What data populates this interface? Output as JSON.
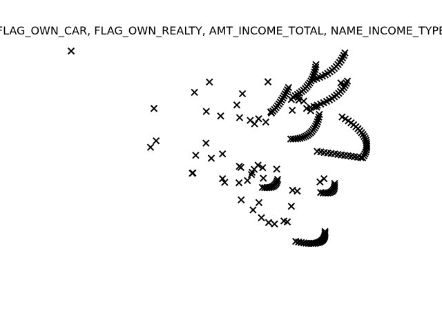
{
  "chart_data": {
    "type": "scatter",
    "title": "FLAG_OWN_CAR, FLAG_OWN_REALTY, AMT_INCOME_TOTAL, NAME_INCOME_TYPE",
    "xlabel": "",
    "ylabel": "",
    "axes_visible": false,
    "grid": false,
    "marker": "x",
    "marker_color": "#000000",
    "xlim": [
      0,
      100
    ],
    "ylim": [
      0,
      100
    ],
    "series": [
      {
        "points": [
          [
            0.0,
            100.0
          ],
          [
            39.6,
            82.0
          ],
          [
            44.4,
            86.5
          ],
          [
            63.2,
            86.6
          ],
          [
            55.0,
            81.4
          ],
          [
            26.6,
            75.0
          ],
          [
            43.4,
            73.7
          ],
          [
            53.2,
            76.5
          ],
          [
            54.1,
            71.0
          ],
          [
            48.0,
            71.7
          ],
          [
            60.2,
            70.5
          ],
          [
            57.5,
            69.8
          ],
          [
            58.9,
            68.3
          ],
          [
            62.5,
            69.1
          ],
          [
            71.0,
            74.2
          ],
          [
            76.9,
            74.0
          ],
          [
            64.1,
            73.5
          ],
          [
            73.1,
            78.6
          ],
          [
            70.7,
            78.9
          ],
          [
            72.9,
            79.8
          ],
          [
            74.7,
            78.2
          ],
          [
            78.8,
            75.6
          ],
          [
            86.6,
            86.1
          ],
          [
            25.5,
            58.1
          ],
          [
            27.3,
            60.9
          ],
          [
            40.0,
            54.6
          ],
          [
            45.0,
            53.3
          ],
          [
            43.3,
            59.9
          ],
          [
            38.9,
            46.8
          ],
          [
            39.1,
            46.9
          ],
          [
            48.6,
            55.2
          ],
          [
            54.5,
            49.3
          ],
          [
            54.0,
            49.8
          ],
          [
            61.5,
            49.2
          ],
          [
            49.3,
            42.8
          ],
          [
            48.6,
            44.4
          ],
          [
            53.9,
            42.6
          ],
          [
            56.6,
            43.6
          ],
          [
            58.1,
            47.2
          ],
          [
            61.7,
            44.6
          ],
          [
            54.6,
            35.2
          ],
          [
            58.4,
            30.8
          ],
          [
            61.1,
            27.4
          ],
          [
            63.4,
            25.3
          ],
          [
            65.3,
            24.7
          ],
          [
            60.3,
            34.0
          ],
          [
            72.6,
            39.0
          ],
          [
            79.9,
            43.0
          ],
          [
            81.2,
            44.4
          ],
          [
            66.0,
            48.6
          ],
          [
            71.1,
            39.4
          ],
          [
            70.7,
            32.4
          ],
          [
            68.3,
            26.0
          ],
          [
            69.4,
            25.6
          ]
        ],
        "curves": [
          {
            "a": [
              77.9,
              87.6
            ],
            "b": [
              85.4,
              90.7
            ],
            "d": [
              87.9,
              99.2
            ],
            "n": 16
          },
          {
            "a": [
              71.2,
              80.0
            ],
            "b": [
              77.9,
              84.3
            ],
            "d": [
              78.6,
              94.1
            ],
            "n": 18
          },
          {
            "a": [
              75.6,
              75.0
            ],
            "b": [
              86.1,
              78.5
            ],
            "d": [
              88.7,
              86.9
            ],
            "n": 18
          },
          {
            "a": [
              64.3,
              73.0
            ],
            "b": [
              67.7,
              77.9
            ],
            "d": [
              69.8,
              84.1
            ],
            "n": 14
          },
          {
            "a": [
              70.5,
              61.7
            ],
            "b": [
              78.2,
              61.2
            ],
            "d": [
              79.7,
              72.4
            ],
            "n": 20
          },
          {
            "a": [
              87.0,
              71.3
            ],
            "b": [
              98.2,
              62.3
            ],
            "d": [
              93.6,
              53.5
            ],
            "n": 22
          },
          {
            "a": [
              79.0,
              56.3
            ],
            "b": [
              86.4,
              54.8
            ],
            "d": [
              93.0,
              53.6
            ],
            "n": 14
          },
          {
            "a": [
              61.4,
              40.6
            ],
            "b": [
              65.7,
              39.7
            ],
            "d": [
              66.3,
              44.1
            ],
            "n": 12
          },
          {
            "a": [
              80.1,
              38.4
            ],
            "b": [
              84.9,
              37.1
            ],
            "d": [
              84.6,
              42.3
            ],
            "n": 12
          },
          {
            "a": [
              72.1,
              17.1
            ],
            "b": [
              82.0,
              14.0
            ],
            "d": [
              81.5,
              21.4
            ],
            "n": 22
          },
          {
            "a": [
              57.9,
              46.2
            ],
            "b": [
              58.6,
              48.7
            ],
            "d": [
              60.0,
              50.3
            ],
            "n": 3
          }
        ]
      }
    ]
  }
}
